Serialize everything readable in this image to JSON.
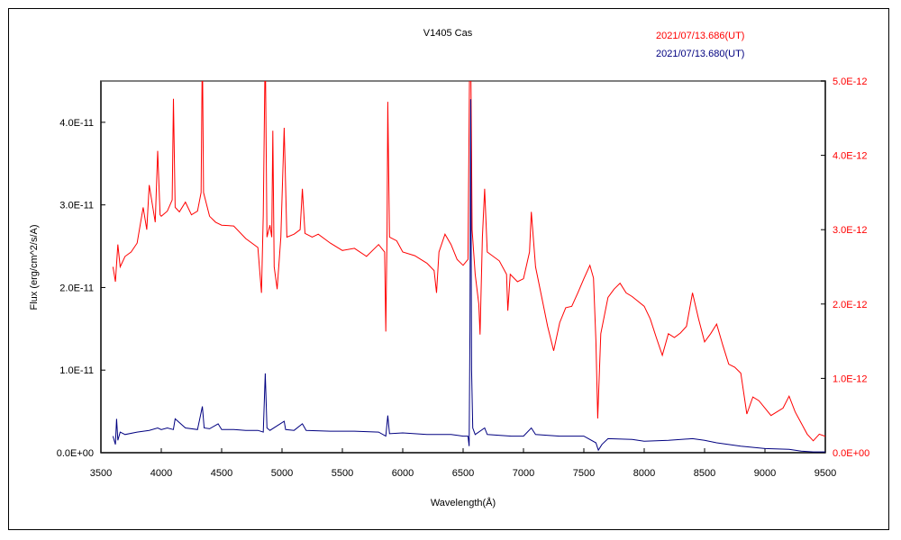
{
  "chart_data": {
    "type": "line",
    "title": "V1405 Cas",
    "xlabel": "Wavelength(Å)",
    "ylabel": "Flux (erg/cm^2/s/A)",
    "xlim": [
      3500,
      9500
    ],
    "ylim_left": [
      0,
      4.5e-11
    ],
    "ylim_right": [
      0,
      5e-12
    ],
    "x_ticks": [
      "3500",
      "4000",
      "4500",
      "5000",
      "5500",
      "6000",
      "6500",
      "7000",
      "7500",
      "8000",
      "8500",
      "9000",
      "9500"
    ],
    "y_ticks_left": [
      "0.0E+00",
      "1.0E-11",
      "2.0E-11",
      "3.0E-11",
      "4.0E-11"
    ],
    "y_ticks_right": [
      "0.0E+00",
      "1.0E-12",
      "2.0E-12",
      "3.0E-12",
      "4.0E-12",
      "5.0E-12"
    ],
    "grid": false,
    "legend_position": "top-right",
    "colors": {
      "red": "#ff0000",
      "blue": "#000080"
    },
    "series": [
      {
        "name": "2021/07/13.686(UT)",
        "color": "#ff0000",
        "axis": "right",
        "unit_scale": 1e-12,
        "x": [
          3600,
          3620,
          3640,
          3660,
          3700,
          3750,
          3800,
          3850,
          3880,
          3900,
          3950,
          3970,
          3990,
          4000,
          4050,
          4090,
          4101,
          4115,
          4150,
          4200,
          4250,
          4300,
          4330,
          4340,
          4350,
          4400,
          4450,
          4500,
          4600,
          4700,
          4800,
          4830,
          4845,
          4861,
          4875,
          4900,
          4915,
          4924,
          4935,
          4960,
          4990,
          5018,
          5040,
          5100,
          5150,
          5169,
          5190,
          5250,
          5300,
          5400,
          5500,
          5600,
          5700,
          5800,
          5850,
          5860,
          5870,
          5876,
          5890,
          5950,
          6000,
          6100,
          6200,
          6260,
          6280,
          6300,
          6350,
          6400,
          6450,
          6500,
          6540,
          6555,
          6563,
          6575,
          6600,
          6630,
          6640,
          6660,
          6678,
          6700,
          6800,
          6860,
          6870,
          6890,
          6950,
          7000,
          7050,
          7065,
          7100,
          7150,
          7200,
          7250,
          7300,
          7350,
          7400,
          7450,
          7500,
          7550,
          7580,
          7600,
          7615,
          7620,
          7640,
          7700,
          7750,
          7800,
          7850,
          7900,
          8000,
          8050,
          8100,
          8150,
          8200,
          8250,
          8300,
          8350,
          8400,
          8450,
          8500,
          8550,
          8600,
          8650,
          8700,
          8750,
          8800,
          8850,
          8900,
          8950,
          9000,
          9050,
          9100,
          9150,
          9200,
          9250,
          9300,
          9350,
          9400,
          9450,
          9500
        ],
        "y": [
          2.5,
          2.3,
          2.8,
          2.5,
          2.64,
          2.7,
          2.82,
          3.3,
          3.0,
          3.6,
          3.1,
          4.06,
          3.2,
          3.18,
          3.25,
          3.4,
          4.76,
          3.3,
          3.24,
          3.37,
          3.2,
          3.25,
          3.5,
          5.5,
          3.5,
          3.18,
          3.1,
          3.06,
          3.05,
          2.88,
          2.76,
          2.15,
          3.2,
          5.5,
          2.9,
          3.06,
          2.9,
          4.33,
          2.5,
          2.2,
          2.9,
          4.37,
          2.9,
          2.94,
          3.0,
          3.55,
          2.95,
          2.9,
          2.94,
          2.82,
          2.72,
          2.75,
          2.64,
          2.8,
          2.7,
          1.63,
          3.0,
          4.72,
          2.9,
          2.85,
          2.7,
          2.65,
          2.55,
          2.45,
          2.15,
          2.7,
          2.94,
          2.8,
          2.6,
          2.52,
          2.6,
          5.5,
          5.5,
          3.0,
          2.4,
          2.0,
          1.59,
          2.9,
          3.55,
          2.7,
          2.58,
          2.4,
          1.91,
          2.4,
          2.3,
          2.34,
          2.7,
          3.24,
          2.5,
          2.1,
          1.7,
          1.37,
          1.75,
          1.95,
          1.97,
          2.15,
          2.34,
          2.52,
          2.35,
          1.5,
          0.46,
          0.7,
          1.6,
          2.09,
          2.2,
          2.28,
          2.15,
          2.1,
          1.97,
          1.8,
          1.55,
          1.31,
          1.6,
          1.55,
          1.61,
          1.7,
          2.15,
          1.8,
          1.49,
          1.6,
          1.73,
          1.45,
          1.19,
          1.15,
          1.07,
          0.52,
          0.75,
          0.7,
          0.6,
          0.5,
          0.55,
          0.6,
          0.76,
          0.55,
          0.4,
          0.25,
          0.16,
          0.25,
          0.22
        ]
      },
      {
        "name": "2021/07/13.680(UT)",
        "color": "#000080",
        "axis": "left",
        "unit_scale": 1e-11,
        "x": [
          3600,
          3620,
          3630,
          3640,
          3660,
          3700,
          3800,
          3900,
          3970,
          4000,
          4050,
          4100,
          4115,
          4200,
          4300,
          4340,
          4355,
          4400,
          4471,
          4500,
          4600,
          4700,
          4800,
          4845,
          4861,
          4875,
          4900,
          5018,
          5030,
          5100,
          5169,
          5200,
          5400,
          5600,
          5800,
          5860,
          5876,
          5890,
          6000,
          6200,
          6400,
          6500,
          6540,
          6550,
          6557,
          6563,
          6570,
          6580,
          6600,
          6678,
          6700,
          6900,
          7000,
          7065,
          7100,
          7300,
          7500,
          7600,
          7620,
          7650,
          7700,
          7900,
          8000,
          8200,
          8400,
          8500,
          8600,
          8800,
          9000,
          9200,
          9300,
          9400,
          9500
        ],
        "y": [
          0.2,
          0.1,
          0.41,
          0.15,
          0.25,
          0.22,
          0.25,
          0.27,
          0.3,
          0.28,
          0.3,
          0.28,
          0.41,
          0.3,
          0.28,
          0.56,
          0.3,
          0.29,
          0.35,
          0.28,
          0.28,
          0.27,
          0.27,
          0.25,
          0.96,
          0.3,
          0.27,
          0.38,
          0.28,
          0.27,
          0.35,
          0.27,
          0.26,
          0.26,
          0.25,
          0.2,
          0.45,
          0.23,
          0.24,
          0.22,
          0.22,
          0.2,
          0.2,
          0.08,
          1.5,
          4.28,
          1.0,
          0.3,
          0.22,
          0.3,
          0.22,
          0.2,
          0.2,
          0.3,
          0.22,
          0.2,
          0.2,
          0.12,
          0.03,
          0.1,
          0.17,
          0.16,
          0.14,
          0.15,
          0.17,
          0.15,
          0.12,
          0.08,
          0.05,
          0.04,
          0.02,
          0.01,
          0.01
        ]
      }
    ]
  }
}
